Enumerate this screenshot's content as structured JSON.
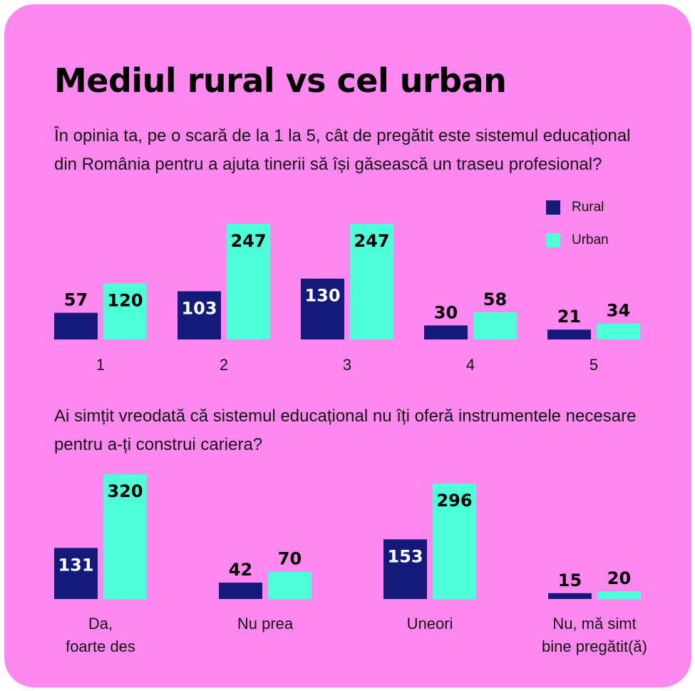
{
  "title": "Mediul rural vs cel urban",
  "colors": {
    "background": "#ff88f0",
    "rural": "#141a7a",
    "urban": "#4dffd9"
  },
  "legend": {
    "rural": "Rural",
    "urban": "Urban"
  },
  "chart_data": [
    {
      "type": "bar",
      "title": "În opinia ta, pe o scară de la 1 la 5, cât de pregătit este sistemul educațional din România pentru a ajuta tinerii să își găsească un traseu profesional?",
      "categories": [
        "1",
        "2",
        "3",
        "4",
        "5"
      ],
      "series": [
        {
          "name": "Rural",
          "values": [
            57,
            103,
            130,
            30,
            21
          ]
        },
        {
          "name": "Urban",
          "values": [
            120,
            247,
            247,
            58,
            34
          ]
        }
      ],
      "xlabel": "",
      "ylabel": "",
      "grid": false,
      "legend": "top-right"
    },
    {
      "type": "bar",
      "title": "Ai simțit vreodată că sistemul educațional nu îți oferă instrumentele necesare pentru a-ți construi cariera?",
      "categories": [
        "Da,\nfoarte des",
        "Nu prea",
        "Uneori",
        "Nu, mă simt\nbine pregătit(ă)"
      ],
      "series": [
        {
          "name": "Rural",
          "values": [
            131,
            42,
            153,
            15
          ]
        },
        {
          "name": "Urban",
          "values": [
            320,
            70,
            296,
            20
          ]
        }
      ],
      "xlabel": "",
      "ylabel": "",
      "grid": false
    }
  ]
}
